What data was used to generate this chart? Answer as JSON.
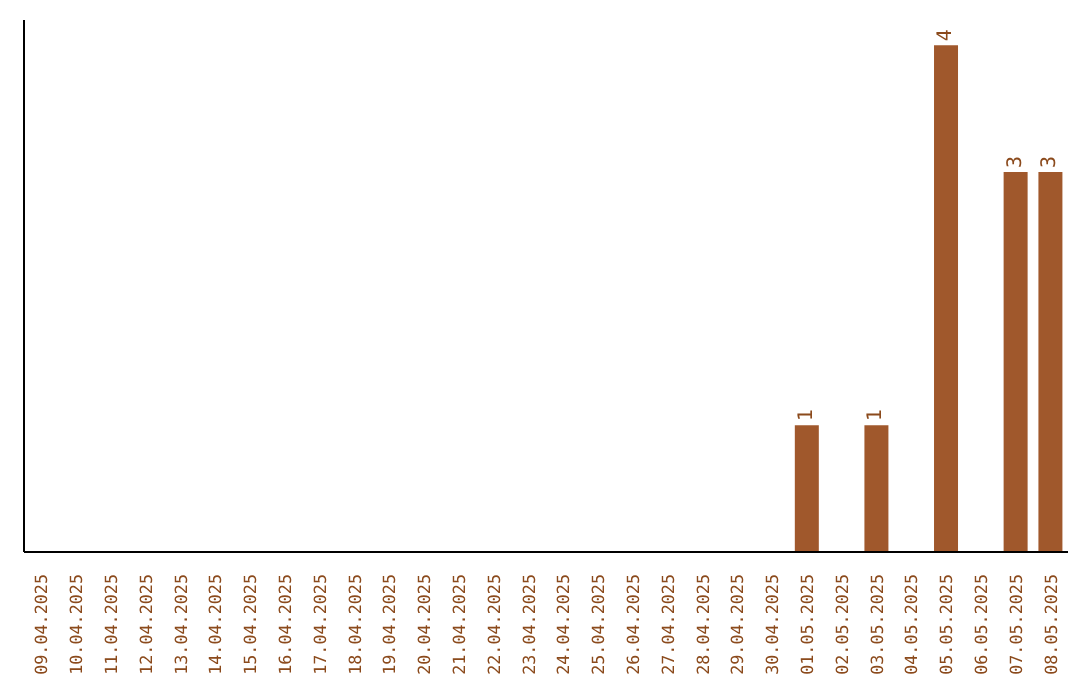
{
  "chart_data": {
    "type": "bar",
    "categories": [
      "09.04.2025",
      "10.04.2025",
      "11.04.2025",
      "12.04.2025",
      "13.04.2025",
      "14.04.2025",
      "15.04.2025",
      "16.04.2025",
      "17.04.2025",
      "18.04.2025",
      "19.04.2025",
      "20.04.2025",
      "21.04.2025",
      "22.04.2025",
      "23.04.2025",
      "24.04.2025",
      "25.04.2025",
      "26.04.2025",
      "27.04.2025",
      "28.04.2025",
      "29.04.2025",
      "30.04.2025",
      "01.05.2025",
      "02.05.2025",
      "03.05.2025",
      "04.05.2025",
      "05.05.2025",
      "06.05.2025",
      "07.05.2025",
      "08.05.2025"
    ],
    "values": [
      null,
      null,
      null,
      null,
      null,
      null,
      null,
      null,
      null,
      null,
      null,
      null,
      null,
      null,
      null,
      null,
      null,
      null,
      null,
      null,
      null,
      null,
      1,
      null,
      1,
      null,
      4,
      null,
      3,
      3
    ],
    "data_labels": true,
    "color": "#a0582c",
    "ylim": [
      0,
      4.2
    ],
    "tick_labels": "x"
  }
}
